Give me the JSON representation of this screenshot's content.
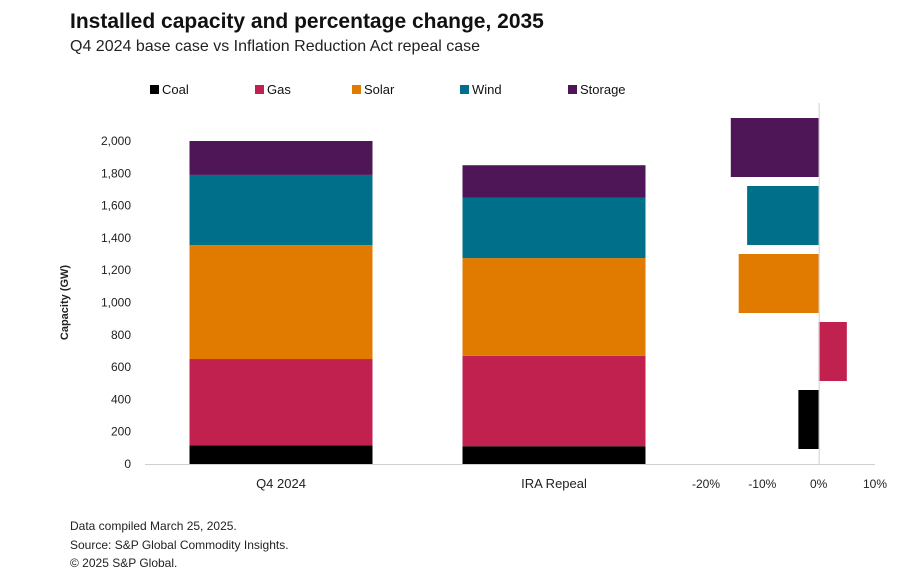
{
  "header": {
    "title": "Installed capacity and percentage change, 2035",
    "subtitle": "Q4 2024 base case vs Inflation Reduction Act repeal case"
  },
  "legend": [
    {
      "label": "Coal",
      "color": "#000000"
    },
    {
      "label": "Gas",
      "color": "#c0214f"
    },
    {
      "label": "Solar",
      "color": "#e07b00"
    },
    {
      "label": "Wind",
      "color": "#00708a"
    },
    {
      "label": "Storage",
      "color": "#4e1656"
    }
  ],
  "chart_data": [
    {
      "type": "bar",
      "stacked": true,
      "title": "",
      "xlabel": "",
      "ylabel": "Capacity (GW)",
      "ylim": [
        0,
        2000
      ],
      "yticks": [
        0,
        200,
        400,
        600,
        800,
        1000,
        1200,
        1400,
        1600,
        1800,
        2000
      ],
      "ytick_labels": [
        "0",
        "200",
        "400",
        "600",
        "800",
        "1,000",
        "1,200",
        "1,400",
        "1,600",
        "1,800",
        "2,000"
      ],
      "categories": [
        "Q4 2024",
        "IRA Repeal"
      ],
      "series": [
        {
          "name": "Coal",
          "color": "#000000",
          "values": [
            115,
            110
          ]
        },
        {
          "name": "Gas",
          "color": "#c0214f",
          "values": [
            535,
            560
          ]
        },
        {
          "name": "Solar",
          "color": "#e07b00",
          "values": [
            705,
            605
          ]
        },
        {
          "name": "Wind",
          "color": "#00708a",
          "values": [
            435,
            375
          ]
        },
        {
          "name": "Storage",
          "color": "#4e1656",
          "values": [
            210,
            200
          ]
        }
      ]
    },
    {
      "type": "bar",
      "orientation": "horizontal",
      "title": "",
      "xlabel": "",
      "ylabel": "",
      "xlim": [
        -20,
        10
      ],
      "xticks": [
        -20,
        -10,
        0,
        10
      ],
      "xtick_labels": [
        "-20%",
        "-10%",
        "0%",
        "10%"
      ],
      "categories": [
        "Storage",
        "Wind",
        "Solar",
        "Gas",
        "Coal"
      ],
      "colors": [
        "#4e1656",
        "#00708a",
        "#e07b00",
        "#c0214f",
        "#000000"
      ],
      "values": [
        -15.6,
        -12.7,
        -14.2,
        5.0,
        -3.6
      ]
    }
  ],
  "footnotes": [
    "Data compiled March 25, 2025.",
    "Source: S&P Global Commodity Insights.",
    "© 2025 S&P Global."
  ]
}
